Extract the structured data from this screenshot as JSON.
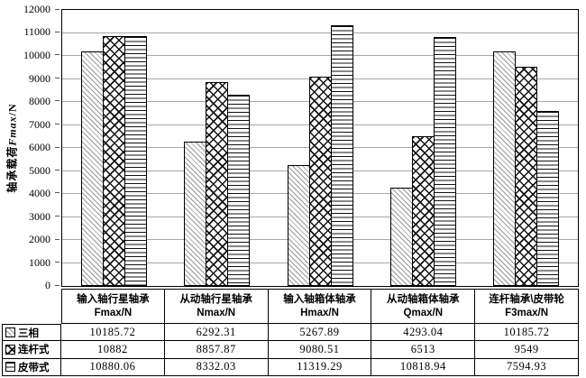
{
  "chart_data": {
    "type": "bar",
    "ylabel": {
      "prefix": "轴承载荷",
      "var": "Fmax",
      "suffix": "/N"
    },
    "ylim": [
      0,
      12000
    ],
    "ytick_step": 1000,
    "grid": true,
    "legend_position": "table-rows",
    "categories": [
      {
        "name": "输入轴行星轴承",
        "unit": "Fmax/N"
      },
      {
        "name": "从动轴行星轴承",
        "unit": "Nmax/N"
      },
      {
        "name": "输入轴箱体轴承",
        "unit": "Hmax/N"
      },
      {
        "name": "从动轴箱体轴承",
        "unit": "Qmax/N"
      },
      {
        "name": "连杆轴承\\皮带轮",
        "unit": "F3max/N"
      }
    ],
    "series": [
      {
        "name": "三相",
        "pattern": "light-diagonal-hatch",
        "values": [
          10185.72,
          6292.31,
          5267.89,
          4293.04,
          10185.72
        ]
      },
      {
        "name": "连杆式",
        "pattern": "diamond-crosshatch",
        "values": [
          10882,
          8857.87,
          9080.51,
          6513,
          9549
        ]
      },
      {
        "name": "皮带式",
        "pattern": "horizontal-lines",
        "values": [
          10880.06,
          8332.03,
          11319.29,
          10818.94,
          7594.93
        ]
      }
    ]
  },
  "colors": {
    "background": "#ffffff",
    "bar_outline": "#000000",
    "gridline": "#a8a8a8",
    "pattern_light": "#979797",
    "pattern_dark": "#111111",
    "text": "#000000"
  }
}
